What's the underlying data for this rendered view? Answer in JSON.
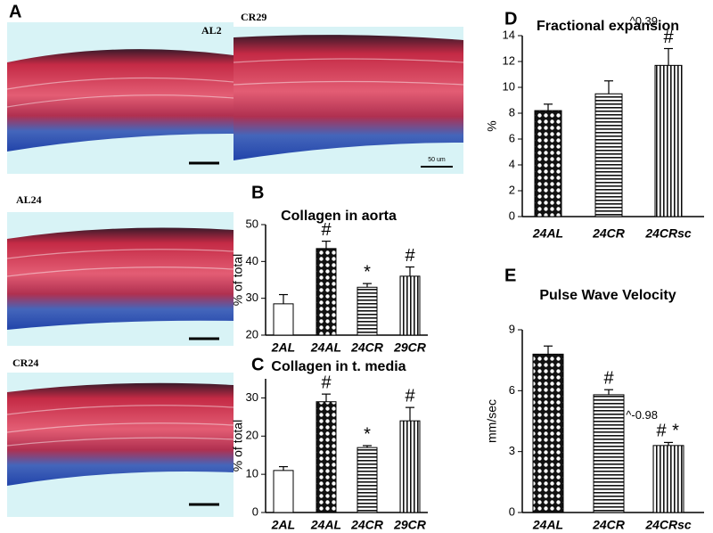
{
  "panel_labels": [
    "A",
    "B",
    "C",
    "D",
    "E"
  ],
  "images": {
    "labels": [
      "AL2",
      "CR29",
      "AL24",
      "CR24"
    ],
    "scale_text": "50 um"
  },
  "chart_data": [
    {
      "type": "bar",
      "title": "Collagen in aorta",
      "y_label": "% of total",
      "categories": [
        "2AL",
        "24AL",
        "24CR",
        "29CR"
      ],
      "values": [
        28.5,
        43.5,
        33,
        36
      ],
      "errors": [
        2.5,
        2,
        1,
        2.5
      ],
      "bar_patterns": [
        "none",
        "dots",
        "hstripes",
        "vstripes"
      ],
      "bar_annotations": [
        [],
        [
          "#"
        ],
        [
          "*"
        ],
        [
          "#"
        ]
      ],
      "ylim": [
        20,
        50
      ],
      "yticks": [
        20,
        30,
        40,
        50
      ]
    },
    {
      "type": "bar",
      "title": "Collagen in t. media",
      "y_label": "% of total",
      "categories": [
        "2AL",
        "24AL",
        "24CR",
        "29CR"
      ],
      "values": [
        11,
        29,
        17,
        24
      ],
      "errors": [
        1,
        2,
        0.5,
        3.5
      ],
      "bar_patterns": [
        "none",
        "dots",
        "hstripes",
        "vstripes"
      ],
      "bar_annotations": [
        [],
        [
          "#"
        ],
        [
          "*"
        ],
        [
          "#"
        ]
      ],
      "ylim": [
        0,
        35
      ],
      "yticks": [
        0,
        10,
        20,
        30
      ]
    },
    {
      "type": "bar",
      "title": "Fractional expansion",
      "y_label": "%",
      "categories": [
        "24AL",
        "24CR",
        "24CRsc"
      ],
      "values": [
        8.2,
        9.5,
        11.7
      ],
      "errors": [
        0.5,
        1,
        1.3
      ],
      "bar_patterns": [
        "dots",
        "hstripes",
        "vstripes"
      ],
      "bar_annotations": [
        [],
        [],
        [
          "^0.39",
          "#"
        ]
      ],
      "ylim": [
        0,
        14
      ],
      "yticks": [
        0,
        2,
        4,
        6,
        8,
        10,
        12,
        14
      ]
    },
    {
      "type": "bar",
      "title": "Pulse Wave Velocity",
      "y_label": "mm/sec",
      "categories": [
        "24AL",
        "24CR",
        "24CRsc"
      ],
      "values": [
        7.8,
        5.8,
        3.3
      ],
      "errors": [
        0.4,
        0.25,
        0.15
      ],
      "bar_patterns": [
        "dots",
        "hstripes",
        "vstripes"
      ],
      "bar_annotations": [
        [],
        [
          "#"
        ],
        [
          "^-0.98",
          "#",
          "*"
        ]
      ],
      "ylim": [
        0,
        9
      ],
      "yticks": [
        0,
        3,
        6,
        9
      ]
    }
  ]
}
